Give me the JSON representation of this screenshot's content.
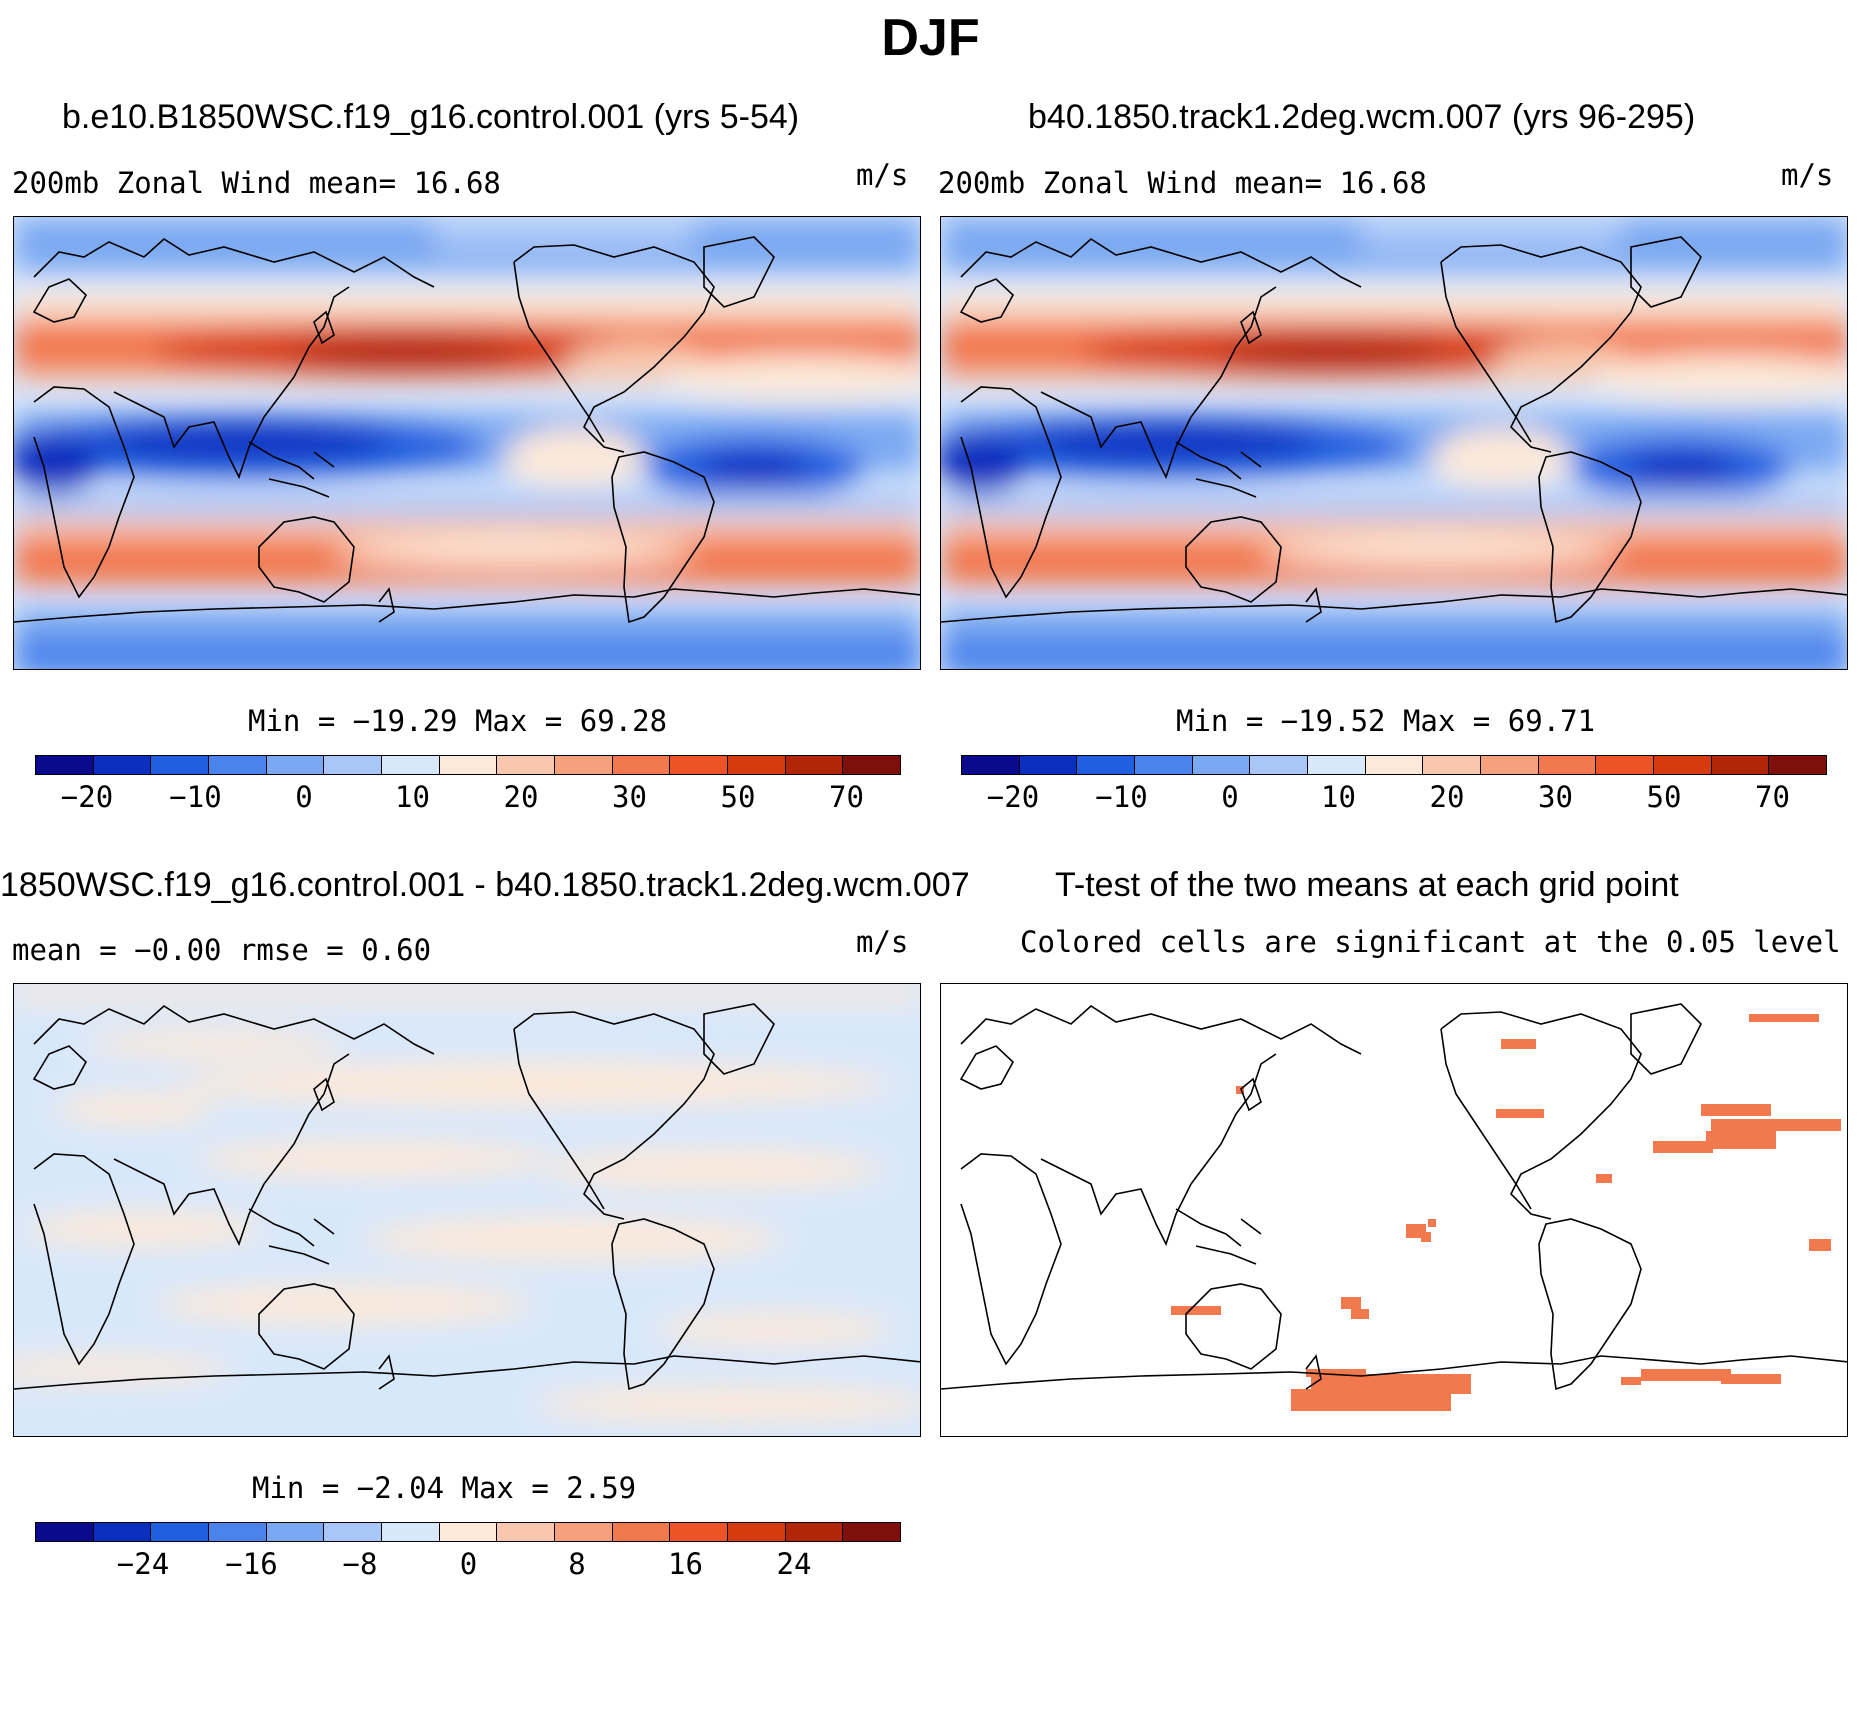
{
  "title": "DJF",
  "palette": [
    "#0a0a8c",
    "#0b2fbf",
    "#1f5fe0",
    "#4a83ec",
    "#7aa8f2",
    "#a9c6f8",
    "#d8e8fb",
    "#fde9d9",
    "#f9c7ad",
    "#f6a07c",
    "#f2784e",
    "#ec5326",
    "#d63a0f",
    "#b22608",
    "#7f0f0a"
  ],
  "panels": {
    "case1": {
      "title": "b.e10.B1850WSC.f19_g16.control.001 (yrs 5-54)",
      "left_label": "200mb  Zonal  Wind   mean=   16.68",
      "units": "m/s",
      "minmax": "Min  =  −19.29  Max  =    69.28",
      "ticks": [
        "−20",
        "−10",
        "0",
        "10",
        "20",
        "30",
        "50",
        "70"
      ]
    },
    "case2": {
      "title": "b40.1850.track1.2deg.wcm.007 (yrs 96-295)",
      "left_label": "200mb  Zonal  Wind   mean=   16.68",
      "units": "m/s",
      "minmax": "Min  =  −19.52  Max  =    69.71",
      "ticks": [
        "−20",
        "−10",
        "0",
        "10",
        "20",
        "30",
        "50",
        "70"
      ]
    },
    "diff": {
      "title": "1850WSC.f19_g16.control.001 - b40.1850.track1.2deg.wcm.007",
      "left_label": "mean  =   −0.00      rmse  =    0.60",
      "units": "m/s",
      "minmax": "Min  =   −2.04  Max  =     2.59",
      "ticks": [
        "−24",
        "−16",
        "−8",
        "0",
        "8",
        "16",
        "24"
      ]
    },
    "ttest": {
      "title": "T-test of the two means at each grid point",
      "subtitle": "Colored cells are significant at the 0.05 level"
    }
  }
}
